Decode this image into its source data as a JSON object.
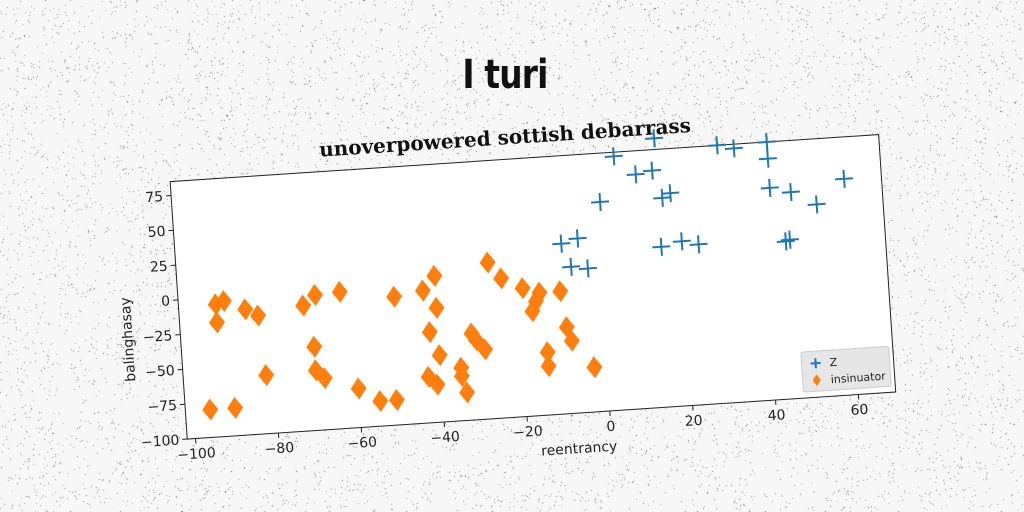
{
  "page": {
    "title": "I turi"
  },
  "chart_data": {
    "type": "scatter",
    "title": "unoverpowered sottish debarrass",
    "xlabel": "reentrancy",
    "ylabel": "balinghasay",
    "xlim": [
      -102,
      69
    ],
    "ylim": [
      -100,
      85
    ],
    "xticks": [
      -100,
      -80,
      -60,
      -40,
      -20,
      0,
      20,
      40,
      60
    ],
    "yticks": [
      -100,
      -75,
      -50,
      -25,
      0,
      25,
      50,
      75
    ],
    "grid": false,
    "legend": "bottom-right",
    "series": [
      {
        "name": "Z",
        "marker": "plus",
        "color": "#1f77b4",
        "points": [
          [
            -9,
            22
          ],
          [
            -5,
            25
          ],
          [
            -7,
            5
          ],
          [
            -3,
            3
          ],
          [
            1,
            50
          ],
          [
            5,
            82
          ],
          [
            10,
            68
          ],
          [
            14,
            70
          ],
          [
            15,
            93
          ],
          [
            16,
            50
          ],
          [
            18,
            53
          ],
          [
            20,
            18
          ],
          [
            15,
            15
          ],
          [
            24,
            15
          ],
          [
            30,
            85
          ],
          [
            34,
            82
          ],
          [
            42,
            85
          ],
          [
            42,
            73
          ],
          [
            42,
            52
          ],
          [
            47,
            48
          ],
          [
            53,
            38
          ],
          [
            60,
            55
          ],
          [
            45,
            13
          ],
          [
            46,
            14
          ]
        ]
      },
      {
        "name": "insinuator",
        "marker": "diamond",
        "color": "#ff7f0e",
        "points": [
          [
            -96,
            -80
          ],
          [
            -90,
            -80
          ],
          [
            -93,
            -5
          ],
          [
            -91,
            -3
          ],
          [
            -93,
            -18
          ],
          [
            -86,
            -10
          ],
          [
            -83,
            -15
          ],
          [
            -82,
            -58
          ],
          [
            -72,
            -10
          ],
          [
            -69,
            -3
          ],
          [
            -70,
            -40
          ],
          [
            -70,
            -57
          ],
          [
            -68,
            -63
          ],
          [
            -63,
            -2
          ],
          [
            -60,
            -72
          ],
          [
            -55,
            -82
          ],
          [
            -51,
            -82
          ],
          [
            -50,
            -8
          ],
          [
            -43,
            -67
          ],
          [
            -43,
            -5
          ],
          [
            -42,
            -35
          ],
          [
            -41,
            -73
          ],
          [
            -40,
            5
          ],
          [
            -40,
            -18
          ],
          [
            -40,
            -52
          ],
          [
            -35,
            -62
          ],
          [
            -35,
            -68
          ],
          [
            -34,
            -80
          ],
          [
            -32,
            -38
          ],
          [
            -31,
            -43
          ],
          [
            -29,
            -50
          ],
          [
            -27,
            12
          ],
          [
            -24,
            0
          ],
          [
            -19,
            -8
          ],
          [
            -17,
            -25
          ],
          [
            -16,
            -18
          ],
          [
            -15,
            -12
          ],
          [
            -14,
            -55
          ],
          [
            -14,
            -65
          ],
          [
            -10,
            -12
          ],
          [
            -9,
            -38
          ],
          [
            -8,
            -48
          ],
          [
            -3,
            -68
          ]
        ]
      }
    ]
  }
}
